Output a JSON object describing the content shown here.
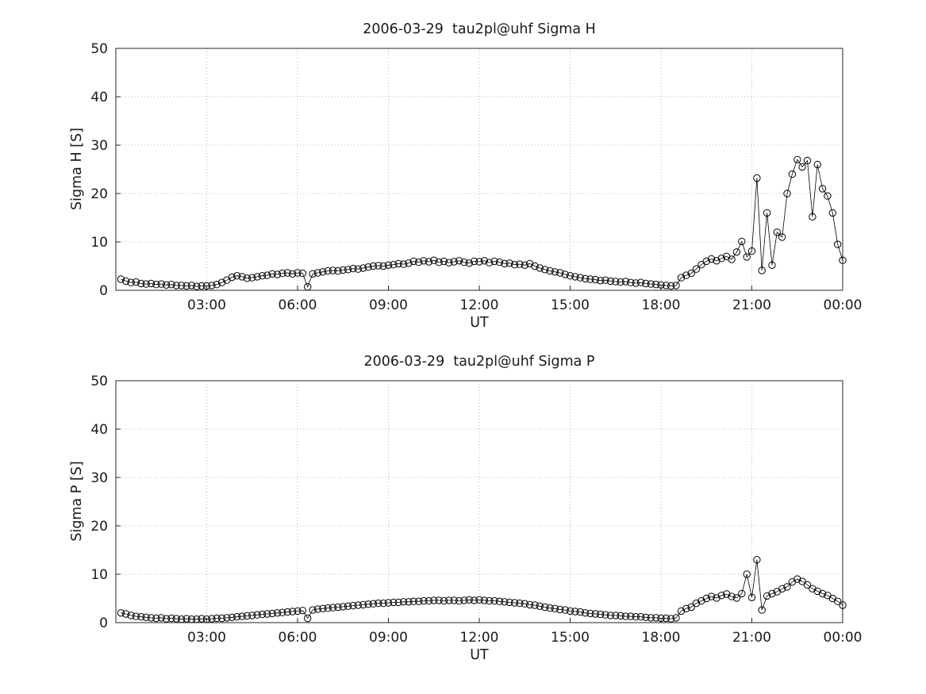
{
  "figure": {
    "background": "#ffffff",
    "axis_color": "#262626",
    "grid_color": "#b5b5b5",
    "data_color": "#000000"
  },
  "chart_data": [
    {
      "type": "line",
      "title": "2006-03-29  tau2pl@uhf Sigma H",
      "xlabel": "UT",
      "ylabel": "Sigma H [S]",
      "marker": "open-circle",
      "grid": true,
      "legend": "none",
      "xlim_hours": [
        0,
        24
      ],
      "ylim": [
        0,
        50
      ],
      "x_ticks_hours": [
        3,
        6,
        9,
        12,
        15,
        18,
        21,
        24
      ],
      "x_tick_labels": [
        "03:00",
        "06:00",
        "09:00",
        "12:00",
        "15:00",
        "18:00",
        "21:00",
        "00:00"
      ],
      "y_ticks": [
        0,
        10,
        20,
        30,
        40,
        50
      ],
      "x_start_hours": 0.16667,
      "x_step_hours": 0.16667,
      "values": [
        2.3,
        1.9,
        1.6,
        1.7,
        1.4,
        1.3,
        1.4,
        1.2,
        1.3,
        1.1,
        1.2,
        1.0,
        1.0,
        0.9,
        1.0,
        0.8,
        0.9,
        0.9,
        1.0,
        1.2,
        1.6,
        2.1,
        2.7,
        3.0,
        2.8,
        2.5,
        2.6,
        2.8,
        3.0,
        3.1,
        3.4,
        3.3,
        3.5,
        3.6,
        3.4,
        3.6,
        3.5,
        0.7,
        3.4,
        3.6,
        3.8,
        4.0,
        4.1,
        4.0,
        4.2,
        4.3,
        4.5,
        4.4,
        4.6,
        4.8,
        5.0,
        5.1,
        5.0,
        5.2,
        5.3,
        5.5,
        5.4,
        5.6,
        6.0,
        5.8,
        6.1,
        5.9,
        6.2,
        5.8,
        6.0,
        5.7,
        5.9,
        6.1,
        5.8,
        5.6,
        6.0,
        5.9,
        6.1,
        5.7,
        6.0,
        5.8,
        5.5,
        5.6,
        5.3,
        5.4,
        5.2,
        5.5,
        5.0,
        4.6,
        4.3,
        4.0,
        3.8,
        3.6,
        3.3,
        3.0,
        2.8,
        2.6,
        2.4,
        2.3,
        2.2,
        2.0,
        2.1,
        1.9,
        1.8,
        1.7,
        1.8,
        1.6,
        1.5,
        1.6,
        1.4,
        1.3,
        1.2,
        1.1,
        1.0,
        0.9,
        1.0,
        2.6,
        3.1,
        3.5,
        4.4,
        5.3,
        6.0,
        6.5,
        6.1,
        6.6,
        7.0,
        6.4,
        7.9,
        10.1,
        6.9,
        8.1,
        23.2,
        4.1,
        16.0,
        5.2,
        12.0,
        11.0,
        20.0,
        24.0,
        27.0,
        25.5,
        26.8,
        15.2,
        26.0,
        21.0,
        19.5,
        16.0,
        9.5,
        6.2
      ]
    },
    {
      "type": "line",
      "title": "2006-03-29  tau2pl@uhf Sigma P",
      "xlabel": "UT",
      "ylabel": "Sigma P [S]",
      "marker": "open-circle",
      "grid": true,
      "legend": "none",
      "xlim_hours": [
        0,
        24
      ],
      "ylim": [
        0,
        50
      ],
      "x_ticks_hours": [
        3,
        6,
        9,
        12,
        15,
        18,
        21,
        24
      ],
      "x_tick_labels": [
        "03:00",
        "06:00",
        "09:00",
        "12:00",
        "15:00",
        "18:00",
        "21:00",
        "00:00"
      ],
      "y_ticks": [
        0,
        10,
        20,
        30,
        40,
        50
      ],
      "x_start_hours": 0.16667,
      "x_step_hours": 0.16667,
      "values": [
        2.0,
        1.8,
        1.5,
        1.3,
        1.2,
        1.1,
        1.0,
        0.9,
        1.0,
        0.8,
        0.9,
        0.8,
        0.7,
        0.8,
        0.7,
        0.7,
        0.8,
        0.7,
        0.8,
        0.9,
        0.9,
        1.0,
        1.1,
        1.2,
        1.3,
        1.4,
        1.5,
        1.6,
        1.7,
        1.8,
        1.9,
        2.0,
        2.1,
        2.2,
        2.3,
        2.4,
        2.5,
        0.9,
        2.6,
        2.8,
        2.9,
        3.0,
        3.1,
        3.2,
        3.3,
        3.4,
        3.5,
        3.6,
        3.7,
        3.8,
        3.9,
        4.0,
        4.0,
        4.1,
        4.2,
        4.2,
        4.3,
        4.3,
        4.4,
        4.4,
        4.5,
        4.5,
        4.6,
        4.6,
        4.5,
        4.6,
        4.6,
        4.5,
        4.6,
        4.7,
        4.6,
        4.7,
        4.6,
        4.5,
        4.5,
        4.4,
        4.3,
        4.2,
        4.1,
        4.0,
        3.9,
        3.7,
        3.6,
        3.4,
        3.2,
        3.0,
        2.9,
        2.7,
        2.6,
        2.4,
        2.3,
        2.2,
        2.0,
        1.9,
        1.8,
        1.7,
        1.6,
        1.5,
        1.5,
        1.4,
        1.3,
        1.3,
        1.2,
        1.2,
        1.1,
        1.0,
        1.0,
        0.9,
        0.9,
        0.8,
        1.0,
        2.4,
        2.9,
        3.2,
        4.0,
        4.5,
        5.0,
        5.4,
        5.1,
        5.6,
        5.9,
        5.4,
        5.1,
        6.0,
        10.0,
        5.2,
        13.0,
        2.6,
        5.5,
        6.0,
        6.4,
        7.0,
        7.4,
        8.4,
        9.0,
        8.5,
        7.8,
        7.0,
        6.5,
        6.0,
        5.6,
        5.0,
        4.4,
        3.6
      ]
    }
  ]
}
